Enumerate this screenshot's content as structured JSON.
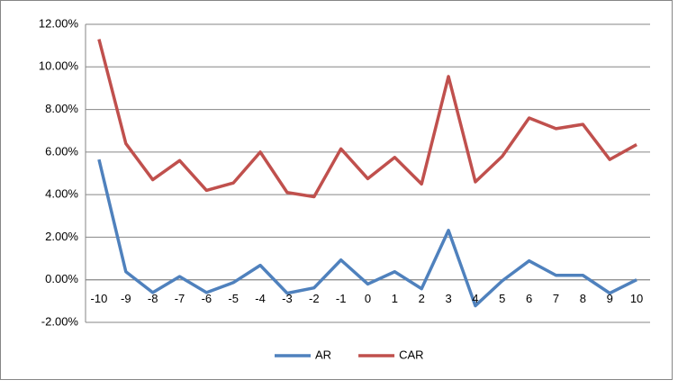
{
  "chart_data": {
    "type": "line",
    "x": [
      -10,
      -9,
      -8,
      -7,
      -6,
      -5,
      -4,
      -3,
      -2,
      -1,
      0,
      1,
      2,
      3,
      4,
      5,
      6,
      7,
      8,
      9,
      10
    ],
    "xlim": [
      -10,
      10
    ],
    "ylim": [
      -2,
      12
    ],
    "yticks": [
      {
        "value": -2,
        "label": "-2.00%"
      },
      {
        "value": 0,
        "label": "0.00%"
      },
      {
        "value": 2,
        "label": "2.00%"
      },
      {
        "value": 4,
        "label": "4.00%"
      },
      {
        "value": 6,
        "label": "6.00%"
      },
      {
        "value": 8,
        "label": "8.00%"
      },
      {
        "value": 10,
        "label": "10.00%"
      },
      {
        "value": 12,
        "label": "12.00%"
      }
    ],
    "grid": true,
    "legend": "bottom",
    "series": [
      {
        "name": "AR",
        "color": "#4f81bd",
        "values": [
          5.65,
          0.38,
          -0.6,
          0.15,
          -0.6,
          -0.13,
          0.68,
          -0.63,
          -0.38,
          0.93,
          -0.2,
          0.38,
          -0.42,
          2.32,
          -1.22,
          -0.05,
          0.89,
          0.21,
          0.21,
          -0.63,
          0
        ]
      },
      {
        "name": "CAR",
        "color": "#c0504d",
        "values": [
          11.3,
          6.4,
          4.7,
          5.6,
          4.2,
          4.55,
          6.0,
          4.1,
          3.9,
          6.15,
          4.75,
          5.75,
          4.5,
          9.55,
          4.6,
          5.8,
          7.6,
          7.1,
          7.3,
          5.65,
          6.35
        ]
      }
    ]
  }
}
